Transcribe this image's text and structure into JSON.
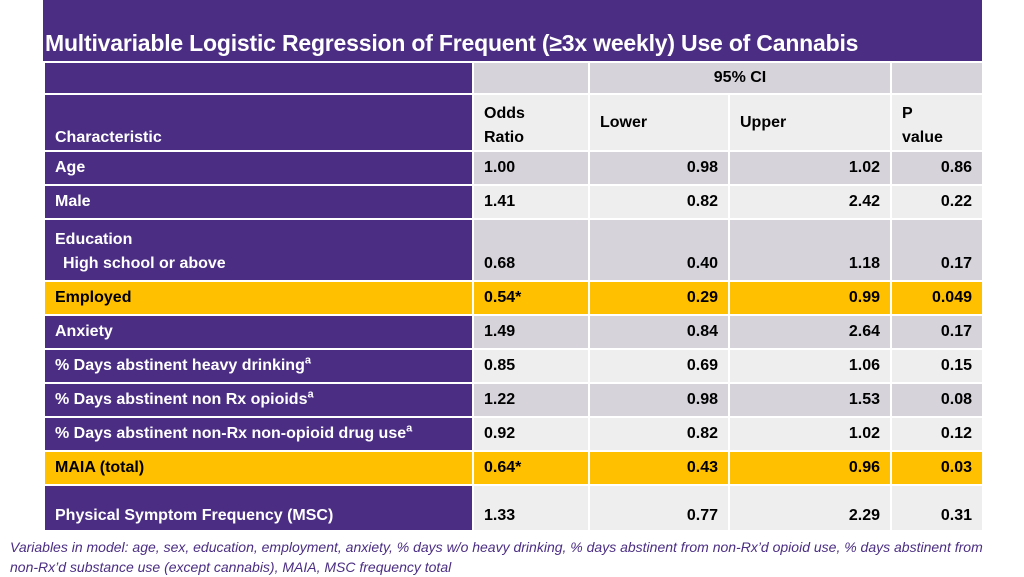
{
  "title": "Multivariable Logistic Regression of Frequent (≥3x weekly) Use of Cannabis",
  "header": {
    "ci_label": "95% CI",
    "characteristic": "Characteristic",
    "odds_ratio_line1": "Odds",
    "odds_ratio_line2": "Ratio",
    "lower": "Lower",
    "upper": "Upper",
    "p_line1": "P",
    "p_line2": "value"
  },
  "rows": [
    {
      "label": "Age",
      "or": "1.00",
      "lower": "0.98",
      "upper": "1.02",
      "p": "0.86"
    },
    {
      "label": "Male",
      "or": "1.41",
      "lower": "0.82",
      "upper": "2.42",
      "p": "0.22"
    },
    {
      "label": "Education",
      "sublabel": "High school or above",
      "or": "0.68",
      "lower": "0.40",
      "upper": "1.18",
      "p": "0.17"
    },
    {
      "label": "Employed",
      "or": "0.54*",
      "lower": "0.29",
      "upper": "0.99",
      "p": "0.049"
    },
    {
      "label": "Anxiety",
      "or": "1.49",
      "lower": "0.84",
      "upper": "2.64",
      "p": "0.17"
    },
    {
      "label": "% Days abstinent heavy drinking",
      "sup": "a",
      "or": "0.85",
      "lower": "0.69",
      "upper": "1.06",
      "p": "0.15"
    },
    {
      "label": "% Days abstinent non Rx opioids",
      "sup": "a",
      "or": "1.22",
      "lower": "0.98",
      "upper": "1.53",
      "p": "0.08"
    },
    {
      "label": "% Days abstinent non-Rx non-opioid drug use",
      "sup": "a",
      "or": "0.92",
      "lower": "0.82",
      "upper": "1.02",
      "p": "0.12"
    },
    {
      "label": "MAIA (total)",
      "or": "0.64*",
      "lower": "0.43",
      "upper": "0.96",
      "p": "0.03"
    },
    {
      "label": "Physical Symptom Frequency (MSC)",
      "or": "1.33",
      "lower": "0.77",
      "upper": "2.29",
      "p": "0.31"
    }
  ],
  "footnote": "Variables in model: age, sex, education, employment, anxiety, % days w/o heavy drinking, % days abstinent from non-Rx’d opioid use, % days abstinent from non-Rx’d substance use (except cannabis), MAIA, MSC frequency total",
  "colors": {
    "purple": "#4b2e83",
    "highlight": "#ffc000",
    "band_dark": "#d6d3db",
    "band_light": "#eeeeee"
  }
}
